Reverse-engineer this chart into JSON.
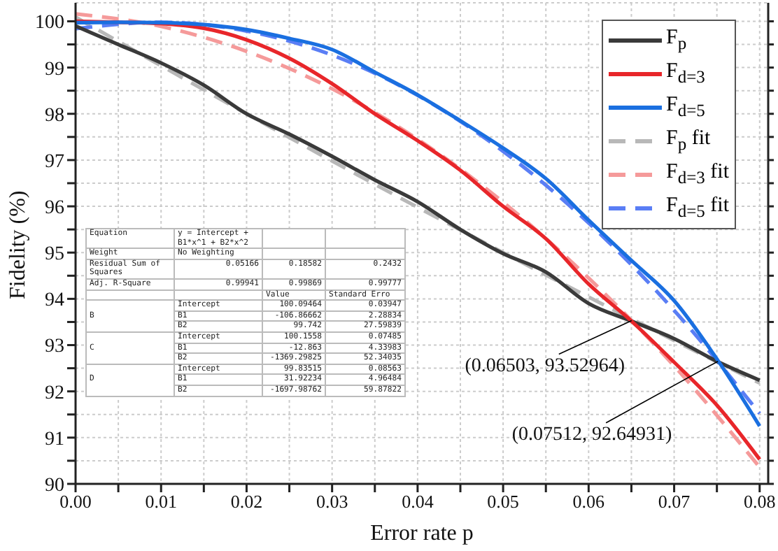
{
  "chart_data": {
    "type": "line",
    "xlabel": "Error rate p",
    "ylabel": "Fidelity (%)",
    "xlim": [
      0,
      0.081
    ],
    "ylim": [
      90,
      100.4
    ],
    "xticks": [
      {
        "value": 0,
        "label": "0.00"
      },
      {
        "value": 0.005,
        "label": null
      },
      {
        "value": 0.01,
        "label": "0.01"
      },
      {
        "value": 0.015,
        "label": null
      },
      {
        "value": 0.02,
        "label": "0.02"
      },
      {
        "value": 0.025,
        "label": null
      },
      {
        "value": 0.03,
        "label": "0.03"
      },
      {
        "value": 0.035,
        "label": null
      },
      {
        "value": 0.04,
        "label": "0.04"
      },
      {
        "value": 0.045,
        "label": null
      },
      {
        "value": 0.05,
        "label": "0.05"
      },
      {
        "value": 0.055,
        "label": null
      },
      {
        "value": 0.06,
        "label": "0.06"
      },
      {
        "value": 0.065,
        "label": null
      },
      {
        "value": 0.07,
        "label": "0.07"
      },
      {
        "value": 0.075,
        "label": null
      },
      {
        "value": 0.08,
        "label": "0.08"
      }
    ],
    "yticks": [
      90,
      {
        "value": 90.5,
        "label": null
      },
      91,
      {
        "value": 91.5,
        "label": null
      },
      92,
      {
        "value": 92.5,
        "label": null
      },
      93,
      {
        "value": 93.5,
        "label": null
      },
      94,
      {
        "value": 94.5,
        "label": null
      },
      95,
      {
        "value": 95.5,
        "label": null
      },
      96,
      {
        "value": 96.5,
        "label": null
      },
      97,
      {
        "value": 97.5,
        "label": null
      },
      98,
      {
        "value": 98.5,
        "label": null
      },
      99,
      {
        "value": 99.5,
        "label": null
      },
      100
    ],
    "grid": true,
    "legend": "top right",
    "marker": "none",
    "series": [
      {
        "name": "F$_{p}$",
        "color": "#3a3a3a",
        "line_style": "solid",
        "x": [
          0,
          0.005,
          0.01,
          0.015,
          0.02,
          0.025,
          0.03,
          0.035,
          0.04,
          0.045,
          0.05,
          0.055,
          0.06,
          0.065,
          0.07,
          0.075,
          0.08
        ],
        "values": [
          99.9,
          99.5,
          99.1,
          98.62,
          98.0,
          97.56,
          97.08,
          96.57,
          96.1,
          95.5,
          94.98,
          94.58,
          93.9,
          93.52,
          93.14,
          92.65,
          92.24
        ]
      },
      {
        "name": "F$_{d=3}$",
        "color": "#e8262a",
        "line_style": "solid",
        "x": [
          0,
          0.005,
          0.01,
          0.015,
          0.02,
          0.025,
          0.03,
          0.035,
          0.04,
          0.045,
          0.05,
          0.055,
          0.06,
          0.065,
          0.07,
          0.075,
          0.08
        ],
        "values": [
          100.0,
          99.98,
          99.95,
          99.85,
          99.6,
          99.2,
          98.65,
          98.0,
          97.42,
          96.78,
          96.0,
          95.3,
          94.32,
          93.52,
          92.63,
          91.7,
          90.53
        ]
      },
      {
        "name": "F$_{d=5}$",
        "color": "#1a6fe0",
        "line_style": "solid",
        "x": [
          0,
          0.005,
          0.01,
          0.015,
          0.02,
          0.025,
          0.03,
          0.035,
          0.04,
          0.045,
          0.05,
          0.055,
          0.06,
          0.065,
          0.07,
          0.075,
          0.08
        ],
        "values": [
          99.97,
          99.98,
          99.97,
          99.93,
          99.82,
          99.63,
          99.39,
          98.9,
          98.41,
          97.85,
          97.26,
          96.6,
          95.7,
          94.83,
          93.96,
          92.7,
          91.25
        ]
      },
      {
        "name": "F$_{p}$ fit",
        "color": "#b8b8b8",
        "line_style": "dashed",
        "x": [
          0,
          0.01,
          0.02,
          0.03,
          0.04,
          0.05,
          0.06,
          0.07,
          0.08
        ],
        "values": [
          100.09,
          99.04,
          98.0,
          96.98,
          95.98,
          95.0,
          94.04,
          93.1,
          92.18
        ]
      },
      {
        "name": "F$_{d=3}$ fit",
        "color": "#f59a9a",
        "line_style": "dashed",
        "x": [
          0,
          0.01,
          0.02,
          0.03,
          0.04,
          0.05,
          0.06,
          0.07,
          0.08
        ],
        "values": [
          100.16,
          99.89,
          99.35,
          98.54,
          97.45,
          96.09,
          94.45,
          92.55,
          90.36
        ]
      },
      {
        "name": "F$_{d=5}$ fit",
        "color": "#5a7ef5",
        "line_style": "dashed",
        "x": [
          0,
          0.01,
          0.02,
          0.03,
          0.04,
          0.05,
          0.06,
          0.07,
          0.08
        ],
        "values": [
          99.84,
          99.98,
          99.79,
          99.27,
          98.4,
          97.19,
          95.64,
          93.75,
          91.52
        ]
      }
    ],
    "annotations": [
      {
        "text": "(0.06503, 93.52964)",
        "x": 0.06503,
        "y": 93.52964
      },
      {
        "text": "(0.07512, 92.64931)",
        "x": 0.07512,
        "y": 92.64931
      },
      "Equation",
      "y = Intercept + B1*x^1 + B2*x^2",
      "Weight",
      "No Weighting",
      "Residual Sum of Squares",
      "0.05166",
      "0.18582",
      "0.2432",
      "Adj. R-Square",
      "0.99941",
      "0.99869",
      "0.99777",
      "Value",
      "Standard Erro",
      "B",
      "Intercept",
      "100.09464",
      "0.03947",
      "B1",
      "-106.86662",
      "2.28834",
      "B2",
      "99.742",
      "27.59839",
      "C",
      "Intercept",
      "100.1558",
      "0.07485",
      "B1",
      "-12.863",
      "4.33983",
      "B2",
      "-1369.29825",
      "52.34035",
      "D",
      "Intercept",
      "99.83515",
      "0.08563",
      "B1",
      "31.92234",
      "4.96484",
      "B2",
      "-1697.98762",
      "59.87822"
    ]
  }
}
